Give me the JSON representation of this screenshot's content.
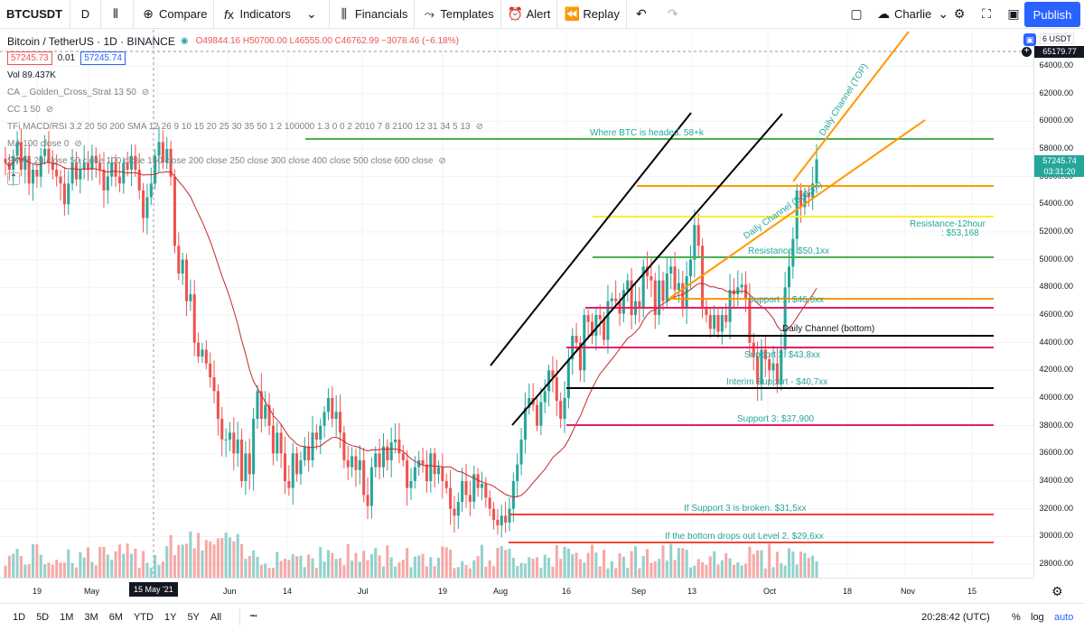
{
  "toolbar": {
    "symbol": "BTCUSDT",
    "interval": "D",
    "compare": "Compare",
    "indicators": "Indicators",
    "financials": "Financials",
    "templates": "Templates",
    "alert": "Alert",
    "replay": "Replay",
    "user": "Charlie",
    "publish": "Publish"
  },
  "legend": {
    "title": "Bitcoin / TetherUS · 1D · BINANCE",
    "ohlc": "O49844.16 H50700.00 L46555.00 C46762.99 −3078.46 (−6.18%)",
    "bid": "57245.73",
    "spread": "0.01",
    "ask": "57245.74",
    "volume": "Vol  89.437K",
    "indicators": [
      "CA _ Golden_Cross_Strat 13 50",
      "CC 1 50",
      "TFi MACD/RSI 3.2 20 50 200 SMA 12 26 9 10 15 20 25 30 35 50 1 2 100000 1.3 0 0 2 2010 7 8 2100 12 31 34 5 13",
      "MA 100 close 0",
      "SMAs 20 close 50 close 100 close 150 close 200 close 250 close 300 close 400 close 500 close 600 close"
    ]
  },
  "price_axis": {
    "currency": "USDT",
    "currency_prefix": "6",
    "labels": [
      "64000.00",
      "62000.00",
      "60000.00",
      "58000.00",
      "56000.00",
      "54000.00",
      "52000.00",
      "50000.00",
      "48000.00",
      "46000.00",
      "44000.00",
      "42000.00",
      "40000.00",
      "38000.00",
      "36000.00",
      "34000.00",
      "32000.00",
      "30000.00",
      "28000.00"
    ],
    "top_marker": "65179.77",
    "last_price": "57245.74",
    "countdown": "03:31:20"
  },
  "time_axis": {
    "labels": [
      "19",
      "May",
      "15 May '21",
      "Jun",
      "14",
      "Jul",
      "19",
      "Aug",
      "16",
      "Sep",
      "13",
      "Oct",
      "18",
      "Nov",
      "15"
    ]
  },
  "annotations": {
    "target": "Where BTC is headed. 58+k",
    "channel_top": "Daily Channel (TOP)",
    "channel_bottom_upper": "Daily Channel (Bottom)",
    "resistance_12h": "Resistance-12hour",
    "resistance_12h_value": ": $53,168",
    "resistance": "Resistance: $50,1xx",
    "support1": "Support 1: $46,6xx",
    "channel_bottom": "Daily Channel (bottom)",
    "support2": "Support 2: $43,8xx",
    "interim": "Interim Support - $40,7xx",
    "support3": "Support 3:  $37,900",
    "if_support3": "If Support 3 is broken. $31,5xx",
    "if_bottom": "If the bottom drops out Level 2. $29,6xx"
  },
  "bottom_bar": {
    "ranges": [
      "1D",
      "5D",
      "1M",
      "3M",
      "6M",
      "YTD",
      "1Y",
      "5Y",
      "All"
    ],
    "clock": "20:28:42 (UTC)",
    "percent": "%",
    "log": "log",
    "auto": "auto"
  },
  "colors": {
    "up": "#26a69a",
    "down": "#ef5350",
    "accent": "#2962ff",
    "green_line": "#4caf50",
    "orange_line": "#ff9800",
    "yellow_line": "#ffeb3b",
    "pink_line": "#e91e63",
    "red_line": "#f44336"
  },
  "chart_data": {
    "type": "candlestick",
    "symbol": "BTCUSDT",
    "timeframe": "1D",
    "last_price": 57245.74,
    "ylim": [
      27000,
      65500
    ],
    "closes": [
      57000,
      56500,
      57500,
      58500,
      56500,
      57500,
      55500,
      56500,
      56000,
      57500,
      58000,
      57000,
      56500,
      56000,
      55500,
      54000,
      55500,
      57000,
      55800,
      56500,
      57000,
      56500,
      57500,
      57000,
      56500,
      55000,
      56000,
      57000,
      56000,
      55500,
      57000,
      56500,
      57500,
      56500,
      55000,
      53000,
      54500,
      55500,
      57500,
      58500,
      57000,
      58000,
      56000,
      51000,
      49000,
      50000,
      47000,
      47500,
      44000,
      43000,
      43500,
      42500,
      41500,
      40500,
      38500,
      37000,
      37000,
      37500,
      36000,
      37000,
      34000,
      36000,
      34500,
      38500,
      40500,
      38500,
      39500,
      38000,
      36000,
      37500,
      36000,
      34000,
      33500,
      36000,
      34500,
      35500,
      36500,
      35500,
      37500,
      37000,
      38000,
      39000,
      40000,
      38500,
      39000,
      37500,
      35500,
      35000,
      35800,
      34800,
      35500,
      33000,
      32200,
      35000,
      36000,
      35000,
      36500,
      35500,
      36800,
      37000,
      36000,
      35500,
      33500,
      34000,
      35000,
      35500,
      35200,
      34000,
      36000,
      34500,
      35000,
      34000,
      33500,
      32000,
      31500,
      32500,
      34000,
      33000,
      32500,
      34500,
      33500,
      33800,
      32800,
      32000,
      31200,
      30800,
      31500,
      31000,
      32000,
      34000,
      35200,
      37000,
      39300,
      40000,
      39500,
      38000,
      39700,
      40500,
      42000,
      41500,
      39800,
      38500,
      40000,
      42800,
      44500,
      44000,
      42000,
      46000,
      45500,
      44500,
      46000,
      45700,
      44200,
      47000,
      47200,
      47000,
      46100,
      47800,
      48500,
      46000,
      47000,
      46500,
      49500,
      48800,
      48500,
      46000,
      48500,
      47000,
      49000,
      49500,
      47800,
      48300,
      46500,
      48800,
      50000,
      52500,
      51000,
      46500,
      46000,
      45000,
      46000,
      44800,
      46000,
      45500,
      47800,
      47500,
      48000,
      48200,
      47200,
      44000,
      43000,
      41000,
      43500,
      42800,
      42000,
      42500,
      41000,
      43500,
      48000,
      49500,
      51500,
      55000,
      53800,
      54800,
      54500,
      55500,
      57245
    ]
  }
}
